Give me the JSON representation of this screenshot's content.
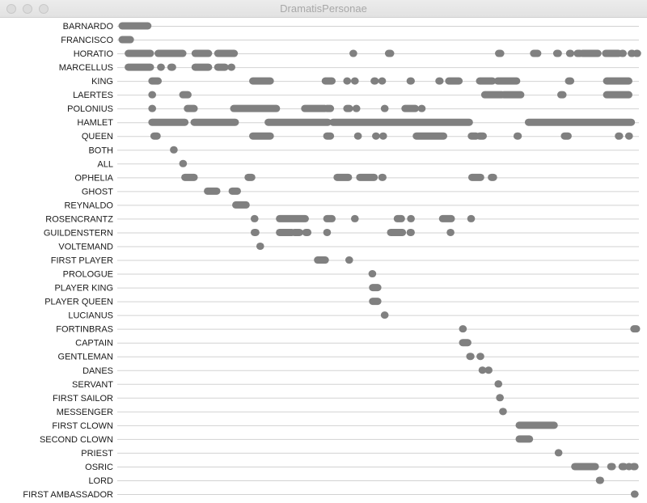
{
  "window": {
    "title": "DramatisPersonae"
  },
  "chart_data": {
    "type": "timeline",
    "x_range": [
      0,
      1
    ],
    "mark_color": "#808080",
    "grid": true,
    "rows": [
      {
        "label": "BARNARDO",
        "segments": [
          [
            0.0,
            0.05
          ]
        ]
      },
      {
        "label": "FRANCISCO",
        "segments": [
          [
            0.0,
            0.016
          ]
        ]
      },
      {
        "label": "HORATIO",
        "segments": [
          [
            0.012,
            0.055
          ],
          [
            0.07,
            0.118
          ],
          [
            0.142,
            0.168
          ],
          [
            0.186,
            0.218
          ],
          [
            0.449,
            0.45
          ],
          [
            0.518,
            0.522
          ],
          [
            0.732,
            0.736
          ],
          [
            0.8,
            0.808
          ],
          [
            0.845,
            0.848
          ],
          [
            0.87,
            0.872
          ],
          [
            0.885,
            0.89
          ],
          [
            0.895,
            0.925
          ],
          [
            0.94,
            0.965
          ],
          [
            0.972,
            0.974
          ],
          [
            0.99,
            0.992
          ],
          [
            1.0,
            1.002
          ]
        ]
      },
      {
        "label": "MARCELLUS",
        "segments": [
          [
            0.012,
            0.055
          ],
          [
            0.075,
            0.076
          ],
          [
            0.095,
            0.098
          ],
          [
            0.142,
            0.168
          ],
          [
            0.186,
            0.2
          ],
          [
            0.212,
            0.213
          ]
        ]
      },
      {
        "label": "KING",
        "segments": [
          [
            0.058,
            0.07
          ],
          [
            0.254,
            0.288
          ],
          [
            0.395,
            0.408
          ],
          [
            0.437,
            0.438
          ],
          [
            0.452,
            0.453
          ],
          [
            0.49,
            0.492
          ],
          [
            0.505,
            0.506
          ],
          [
            0.56,
            0.562
          ],
          [
            0.616,
            0.618
          ],
          [
            0.635,
            0.655
          ],
          [
            0.695,
            0.72
          ],
          [
            0.73,
            0.767
          ],
          [
            0.868,
            0.872
          ],
          [
            0.942,
            0.985
          ]
        ]
      },
      {
        "label": "LAERTES",
        "segments": [
          [
            0.058,
            0.059
          ],
          [
            0.118,
            0.128
          ],
          [
            0.705,
            0.738
          ],
          [
            0.742,
            0.775
          ],
          [
            0.853,
            0.857
          ],
          [
            0.942,
            0.985
          ]
        ]
      },
      {
        "label": "POLONIUS",
        "segments": [
          [
            0.058,
            0.059
          ],
          [
            0.127,
            0.14
          ],
          [
            0.217,
            0.3
          ],
          [
            0.355,
            0.394
          ],
          [
            0.398,
            0.405
          ],
          [
            0.437,
            0.442
          ],
          [
            0.455,
            0.456
          ],
          [
            0.51,
            0.511
          ],
          [
            0.55,
            0.57
          ],
          [
            0.582,
            0.583
          ]
        ]
      },
      {
        "label": "HAMLET",
        "segments": [
          [
            0.058,
            0.122
          ],
          [
            0.14,
            0.22
          ],
          [
            0.284,
            0.4
          ],
          [
            0.41,
            0.675
          ],
          [
            0.79,
            0.99
          ]
        ]
      },
      {
        "label": "QUEEN",
        "segments": [
          [
            0.062,
            0.068
          ],
          [
            0.254,
            0.288
          ],
          [
            0.398,
            0.405
          ],
          [
            0.458,
            0.459
          ],
          [
            0.493,
            0.494
          ],
          [
            0.507,
            0.508
          ],
          [
            0.572,
            0.625
          ],
          [
            0.679,
            0.688
          ],
          [
            0.695,
            0.702
          ],
          [
            0.768,
            0.77
          ],
          [
            0.86,
            0.867
          ],
          [
            0.965,
            0.967
          ],
          [
            0.985,
            0.986
          ]
        ]
      },
      {
        "label": "BOTH",
        "segments": [
          [
            0.1,
            0.101
          ]
        ]
      },
      {
        "label": "ALL",
        "segments": [
          [
            0.118,
            0.119
          ]
        ]
      },
      {
        "label": "OPHELIA",
        "segments": [
          [
            0.122,
            0.14
          ],
          [
            0.245,
            0.252
          ],
          [
            0.418,
            0.44
          ],
          [
            0.462,
            0.49
          ],
          [
            0.505,
            0.507
          ],
          [
            0.68,
            0.697
          ],
          [
            0.718,
            0.722
          ]
        ]
      },
      {
        "label": "GHOST",
        "segments": [
          [
            0.166,
            0.184
          ],
          [
            0.214,
            0.224
          ]
        ]
      },
      {
        "label": "REYNALDO",
        "segments": [
          [
            0.221,
            0.241
          ]
        ]
      },
      {
        "label": "ROSENCRANTZ",
        "segments": [
          [
            0.257,
            0.258
          ],
          [
            0.306,
            0.356
          ],
          [
            0.398,
            0.408
          ],
          [
            0.452,
            0.453
          ],
          [
            0.535,
            0.543
          ],
          [
            0.561,
            0.562
          ],
          [
            0.623,
            0.64
          ],
          [
            0.678,
            0.679
          ]
        ]
      },
      {
        "label": "GUILDENSTERN",
        "segments": [
          [
            0.257,
            0.26
          ],
          [
            0.306,
            0.33
          ],
          [
            0.335,
            0.345
          ],
          [
            0.357,
            0.361
          ],
          [
            0.398,
            0.399
          ],
          [
            0.522,
            0.545
          ],
          [
            0.56,
            0.562
          ],
          [
            0.638,
            0.639
          ]
        ]
      },
      {
        "label": "VOLTEMAND",
        "segments": [
          [
            0.268,
            0.269
          ]
        ]
      },
      {
        "label": "FIRST PLAYER",
        "segments": [
          [
            0.38,
            0.395
          ],
          [
            0.441,
            0.442
          ]
        ]
      },
      {
        "label": "PROLOGUE",
        "segments": [
          [
            0.486,
            0.487
          ]
        ]
      },
      {
        "label": "PLAYER KING",
        "segments": [
          [
            0.487,
            0.497
          ]
        ]
      },
      {
        "label": "PLAYER QUEEN",
        "segments": [
          [
            0.487,
            0.497
          ]
        ]
      },
      {
        "label": "LUCIANUS",
        "segments": [
          [
            0.51,
            0.511
          ]
        ]
      },
      {
        "label": "FORTINBRAS",
        "segments": [
          [
            0.662,
            0.663
          ],
          [
            0.995,
            1.0
          ]
        ]
      },
      {
        "label": "CAPTAIN",
        "segments": [
          [
            0.662,
            0.672
          ]
        ]
      },
      {
        "label": "GENTLEMAN",
        "segments": [
          [
            0.676,
            0.678
          ],
          [
            0.696,
            0.697
          ]
        ]
      },
      {
        "label": "DANES",
        "segments": [
          [
            0.7,
            0.701
          ],
          [
            0.712,
            0.713
          ]
        ]
      },
      {
        "label": "SERVANT",
        "segments": [
          [
            0.731,
            0.732
          ]
        ]
      },
      {
        "label": "FIRST SAILOR",
        "segments": [
          [
            0.734,
            0.735
          ]
        ]
      },
      {
        "label": "MESSENGER",
        "segments": [
          [
            0.74,
            0.741
          ]
        ]
      },
      {
        "label": "FIRST CLOWN",
        "segments": [
          [
            0.772,
            0.84
          ]
        ]
      },
      {
        "label": "SECOND CLOWN",
        "segments": [
          [
            0.772,
            0.792
          ]
        ]
      },
      {
        "label": "PRIEST",
        "segments": [
          [
            0.848,
            0.849
          ]
        ]
      },
      {
        "label": "OSRIC",
        "segments": [
          [
            0.88,
            0.92
          ],
          [
            0.95,
            0.953
          ],
          [
            0.972,
            0.976
          ],
          [
            0.985,
            0.986
          ],
          [
            0.994,
            0.997
          ]
        ]
      },
      {
        "label": "LORD",
        "segments": [
          [
            0.928,
            0.93
          ]
        ]
      },
      {
        "label": "FIRST AMBASSADOR",
        "segments": [
          [
            0.996,
            0.997
          ]
        ]
      }
    ]
  }
}
